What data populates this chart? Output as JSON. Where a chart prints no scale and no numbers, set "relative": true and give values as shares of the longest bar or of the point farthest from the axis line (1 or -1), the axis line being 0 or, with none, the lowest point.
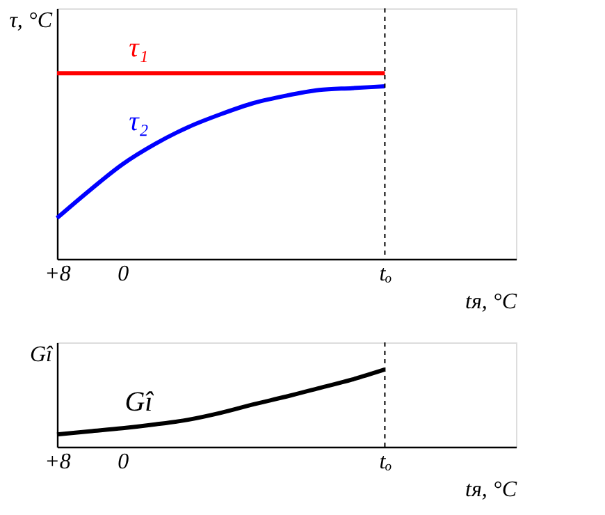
{
  "chart_data": [
    {
      "type": "line",
      "relative": true,
      "ylabel": "τ, °C",
      "xlabel": "tя, °C",
      "categories": [
        "+8",
        null,
        "0",
        null,
        null,
        null,
        null,
        null,
        null,
        null,
        "tₒ",
        null,
        null,
        null,
        null
      ],
      "series": [
        {
          "name": "τ₁",
          "color": "#ff0000",
          "values": [
            1,
            1,
            1,
            1,
            1,
            1,
            1,
            1,
            1,
            1,
            1,
            null,
            null,
            null,
            null
          ]
        },
        {
          "name": "τ₂",
          "color": "#0000ff",
          "values": [
            0.22,
            0.37,
            0.51,
            0.62,
            0.71,
            0.78,
            0.84,
            0.88,
            0.91,
            0.92,
            0.93,
            null,
            null,
            null,
            null
          ]
        }
      ],
      "ref_lines": [
        {
          "axis": "x",
          "value": "tₒ",
          "color": "#000000",
          "line_style": "dashed"
        }
      ],
      "grid": false,
      "tick_labels": "x"
    },
    {
      "type": "line",
      "relative": true,
      "ylabel": "Gî",
      "xlabel": "tя, °C",
      "categories": [
        "+8",
        null,
        "0",
        null,
        null,
        null,
        null,
        null,
        null,
        null,
        "tₒ",
        null,
        null,
        null,
        null
      ],
      "series": [
        {
          "name": "Gî",
          "color": "#000000",
          "values": [
            0.16,
            0.2,
            0.24,
            0.29,
            0.35,
            0.44,
            0.55,
            0.65,
            0.76,
            0.87,
            1,
            null,
            null,
            null,
            null
          ]
        }
      ],
      "ref_lines": [
        {
          "axis": "x",
          "value": "tₒ",
          "color": "#000000",
          "line_style": "dashed"
        }
      ],
      "grid": false,
      "tick_labels": "x"
    }
  ]
}
